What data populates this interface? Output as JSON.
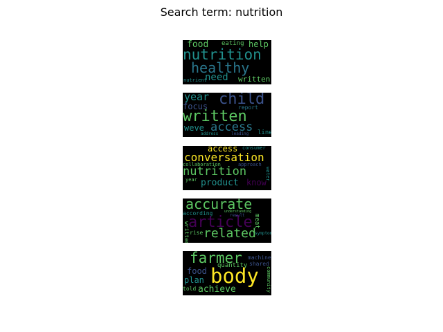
{
  "title": "Search term: nutrition",
  "palette": {
    "dark_purple": "#440154",
    "blue": "#3b528b",
    "teal": "#21908d",
    "green": "#5dc863",
    "yellow": "#fde725",
    "sea": "#2a788e"
  },
  "clouds": [
    {
      "words": [
        "food",
        "eating",
        "help",
        "nutrition",
        "healthy",
        "need",
        "written",
        "nutrient"
      ]
    },
    {
      "words": [
        "year",
        "child",
        "focus",
        "report",
        "written",
        "weve",
        "access",
        "address",
        "leading",
        "line"
      ]
    },
    {
      "words": [
        "access",
        "consumer",
        "conversation",
        "collaboration",
        "approach",
        "nutrition",
        "water",
        "year",
        "product",
        "know"
      ]
    },
    {
      "words": [
        "accurate",
        "according",
        "article",
        "understanding",
        "result",
        "written",
        "meat",
        "rise",
        "related",
        "symptom"
      ]
    },
    {
      "words": [
        "farmer",
        "machine",
        "shared",
        "quantity",
        "food",
        "body",
        "plan",
        "community",
        "told",
        "achieve"
      ]
    }
  ]
}
